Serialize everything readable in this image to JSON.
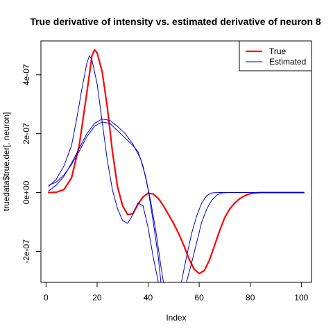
{
  "chart_data": {
    "type": "line",
    "title": "True derivative of intensity vs. estimated derivative of neuron 8",
    "xlabel": "Index",
    "ylabel": "truedata$true.der[, neuron]",
    "xlim": [
      -2,
      104
    ],
    "ylim": [
      -3.05e-07,
      5.15e-07
    ],
    "x_ticks": [
      0,
      20,
      40,
      60,
      80,
      100
    ],
    "x_tick_labels": [
      "0",
      "20",
      "40",
      "60",
      "80",
      "100"
    ],
    "y_ticks": [
      -2e-07,
      0,
      2e-07,
      4e-07
    ],
    "y_tick_labels": [
      "-2e-07",
      "0e+00",
      "2e-07",
      "4e-07"
    ],
    "legend_position": "top-right",
    "grid": false,
    "legend": [
      {
        "label": "True",
        "color": "#ff0000"
      },
      {
        "label": "Estimated",
        "color": "#0000cc"
      }
    ],
    "series": [
      {
        "name": "True",
        "color": "#ff0000",
        "points": [
          [
            1,
            0
          ],
          [
            4,
            1e-09
          ],
          [
            7,
            1e-08
          ],
          [
            10,
            5e-08
          ],
          [
            13,
            1.6e-07
          ],
          [
            16,
            3.4e-07
          ],
          [
            18,
            4.65e-07
          ],
          [
            19,
            4.85e-07
          ],
          [
            20,
            4.75e-07
          ],
          [
            22,
            4.1e-07
          ],
          [
            24,
            2.9e-07
          ],
          [
            26,
            1.4e-07
          ],
          [
            28,
            2e-08
          ],
          [
            30,
            -4.5e-08
          ],
          [
            32,
            -7.5e-08
          ],
          [
            34,
            -7.2e-08
          ],
          [
            36,
            -4e-08
          ],
          [
            38,
            -1.5e-08
          ],
          [
            40,
            -2e-09
          ],
          [
            42,
            -5e-09
          ],
          [
            44,
            -2e-08
          ],
          [
            46,
            -4.5e-08
          ],
          [
            48,
            -7.5e-08
          ],
          [
            50,
            -1.05e-07
          ],
          [
            52,
            -1.4e-07
          ],
          [
            54,
            -1.8e-07
          ],
          [
            56,
            -2.25e-07
          ],
          [
            58,
            -2.6e-07
          ],
          [
            60,
            -2.75e-07
          ],
          [
            62,
            -2.65e-07
          ],
          [
            64,
            -2.3e-07
          ],
          [
            66,
            -1.8e-07
          ],
          [
            68,
            -1.3e-07
          ],
          [
            70,
            -8.5e-08
          ],
          [
            72,
            -5.5e-08
          ],
          [
            74,
            -3.5e-08
          ],
          [
            76,
            -2e-08
          ],
          [
            78,
            -1e-08
          ],
          [
            80,
            -4e-09
          ],
          [
            82,
            -1e-09
          ],
          [
            84,
            0
          ],
          [
            90,
            0
          ],
          [
            101,
            0
          ]
        ]
      },
      {
        "name": "Estimated",
        "color": "#0000cc",
        "points": [
          [
            1,
            2e-08
          ],
          [
            4,
            4.5e-08
          ],
          [
            7,
            9e-08
          ],
          [
            10,
            1.6e-07
          ],
          [
            12,
            2.5e-07
          ],
          [
            14,
            3.5e-07
          ],
          [
            16,
            4.4e-07
          ],
          [
            17,
            4.65e-07
          ],
          [
            18,
            4.5e-07
          ],
          [
            20,
            3.7e-07
          ],
          [
            22,
            2.4e-07
          ],
          [
            24,
            1.1e-07
          ],
          [
            26,
            1e-08
          ],
          [
            28,
            -5.5e-08
          ],
          [
            30,
            -9.5e-08
          ],
          [
            32,
            -1.05e-07
          ],
          [
            34,
            -7.5e-08
          ],
          [
            36,
            -3.5e-08
          ],
          [
            38,
            -4.5e-08
          ],
          [
            40,
            -1.2e-07
          ],
          [
            42,
            -2.2e-07
          ],
          [
            44,
            -3.05e-07
          ]
        ]
      },
      {
        "name": "Estimated",
        "color": "#0000cc",
        "points": [
          [
            1,
            2.5e-08
          ],
          [
            4,
            3.5e-08
          ],
          [
            7,
            6e-08
          ],
          [
            10,
            9.5e-08
          ],
          [
            13,
            1.4e-07
          ],
          [
            16,
            1.9e-07
          ],
          [
            19,
            2.25e-07
          ],
          [
            22,
            2.4e-07
          ],
          [
            25,
            2.35e-07
          ],
          [
            28,
            2.1e-07
          ],
          [
            31,
            1.85e-07
          ],
          [
            34,
            1.6e-07
          ],
          [
            36,
            1.4e-07
          ],
          [
            38,
            9e-08
          ],
          [
            40,
            1e-08
          ],
          [
            42,
            -1e-07
          ],
          [
            44,
            -2.2e-07
          ],
          [
            45,
            -3.05e-07
          ]
        ]
      },
      {
        "name": "Estimated",
        "color": "#0000cc",
        "points": [
          [
            1,
            5e-09
          ],
          [
            4,
            2.5e-08
          ],
          [
            7,
            5.5e-08
          ],
          [
            10,
            1e-07
          ],
          [
            13,
            1.5e-07
          ],
          [
            16,
            2e-07
          ],
          [
            19,
            2.35e-07
          ],
          [
            22,
            2.5e-07
          ],
          [
            25,
            2.45e-07
          ],
          [
            28,
            2.25e-07
          ],
          [
            31,
            2e-07
          ],
          [
            34,
            1.65e-07
          ],
          [
            37,
            1.15e-07
          ],
          [
            39,
            5.5e-08
          ],
          [
            41,
            -3e-08
          ],
          [
            43,
            -1.3e-07
          ],
          [
            45,
            -2.5e-07
          ],
          [
            46,
            -3.05e-07
          ]
        ]
      },
      {
        "name": "Estimated",
        "color": "#0000cc",
        "points": [
          [
            53,
            -3.05e-07
          ],
          [
            55,
            -2.2e-07
          ],
          [
            57,
            -1.4e-07
          ],
          [
            59,
            -8e-08
          ],
          [
            61,
            -3.5e-08
          ],
          [
            63,
            -1e-08
          ],
          [
            65,
            -1e-09
          ],
          [
            68,
            0
          ],
          [
            75,
            0
          ],
          [
            101,
            0
          ]
        ]
      },
      {
        "name": "Estimated",
        "color": "#0000cc",
        "points": [
          [
            55,
            -3.05e-07
          ],
          [
            57,
            -2.4e-07
          ],
          [
            59,
            -1.7e-07
          ],
          [
            61,
            -1e-07
          ],
          [
            63,
            -5.5e-08
          ],
          [
            65,
            -2.5e-08
          ],
          [
            67,
            -8e-09
          ],
          [
            69,
            -1e-09
          ],
          [
            72,
            0
          ],
          [
            80,
            0
          ],
          [
            101,
            0
          ]
        ]
      }
    ]
  }
}
